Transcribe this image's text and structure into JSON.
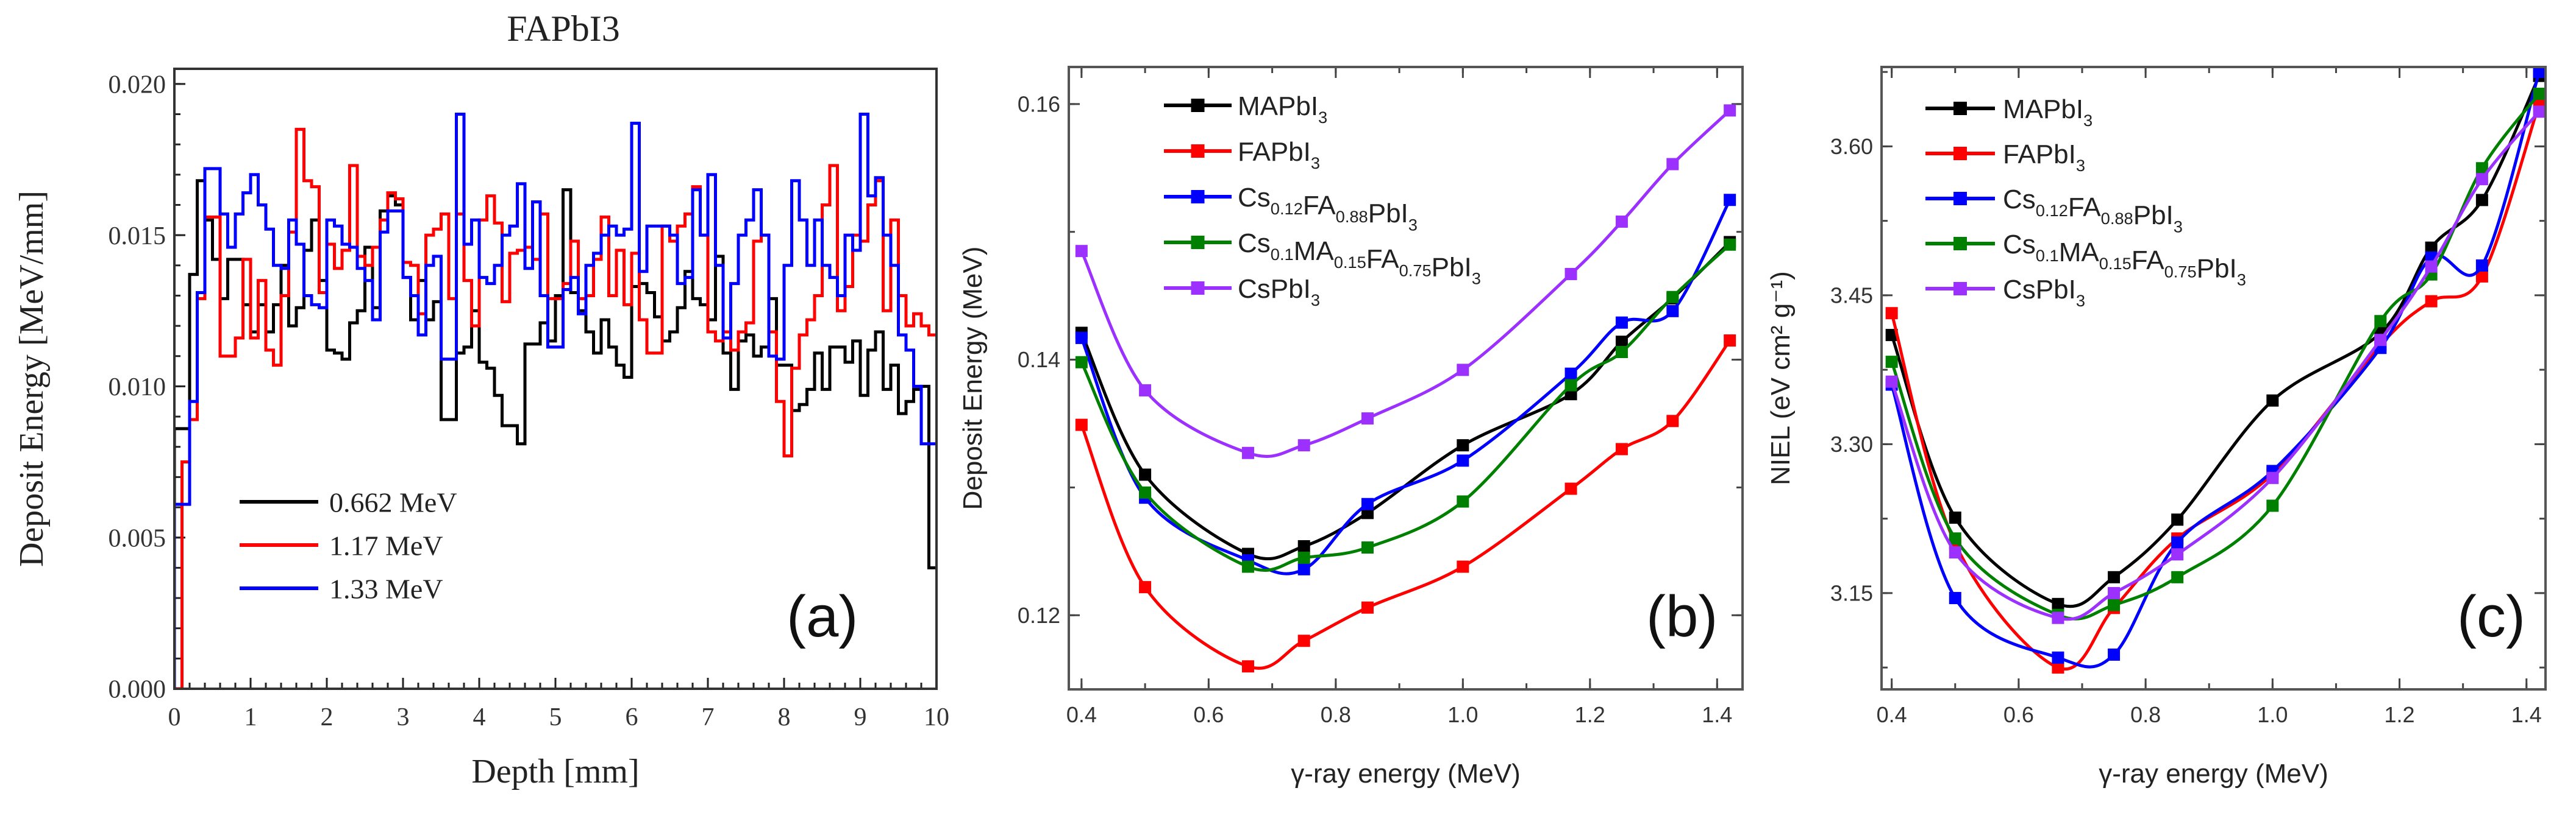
{
  "chart_data": [
    {
      "type": "line",
      "style": "step",
      "panel_label": "(a)",
      "title": "FAPbI3",
      "xlabel": "Depth [mm]",
      "ylabel": "Deposit Energy [MeV/mm]",
      "xlim": [
        0,
        10
      ],
      "ylim": [
        0,
        0.0205
      ],
      "xticks": [
        "0",
        "1",
        "2",
        "3",
        "4",
        "5",
        "6",
        "7",
        "8",
        "9",
        "10"
      ],
      "yticks": [
        "0.000",
        "0.005",
        "0.010",
        "0.015",
        "0.020"
      ],
      "bin_width": 0.1,
      "legend_position": "bottom-left",
      "series": [
        {
          "name": "0.662 MeV",
          "color": "#000000",
          "values": [
            0.0086,
            0.0086,
            0.0137,
            0.0168,
            0.0155,
            0.0142,
            0.0129,
            0.0142,
            0.0142,
            0.0127,
            0.0118,
            0.0127,
            0.0118,
            0.0127,
            0.014,
            0.012,
            0.0126,
            0.0145,
            0.0155,
            0.0135,
            0.0112,
            0.0111,
            0.0109,
            0.0121,
            0.0125,
            0.0146,
            0.0126,
            0.0158,
            0.0163,
            0.016,
            0.0136,
            0.0122,
            0.0135,
            0.0122,
            0.0128,
            0.0089,
            0.0089,
            0.0111,
            0.0113,
            0.0125,
            0.0108,
            0.0106,
            0.0097,
            0.0087,
            0.0087,
            0.0081,
            0.0114,
            0.0114,
            0.0121,
            0.0115,
            0.013,
            0.0165,
            0.0131,
            0.0125,
            0.0118,
            0.0111,
            0.0122,
            0.0113,
            0.0107,
            0.0103,
            0.0133,
            0.0134,
            0.0131,
            0.0123,
            0.0115,
            0.0118,
            0.0126,
            0.0138,
            0.0129,
            0.0127,
            0.0122,
            0.0143,
            0.0111,
            0.0099,
            0.0115,
            0.0117,
            0.011,
            0.0113,
            0.0129,
            0.0107,
            0.0107,
            0.0092,
            0.0094,
            0.0099,
            0.0111,
            0.0099,
            0.0113,
            0.0113,
            0.0108,
            0.0115,
            0.0097,
            0.0112,
            0.0118,
            0.0099,
            0.0107,
            0.0091,
            0.0095,
            0.0099,
            0.01,
            0.004
          ]
        },
        {
          "name": "1.17 MeV",
          "color": "#ff0000",
          "values": [
            0.0,
            0.0075,
            0.0089,
            0.0129,
            0.0156,
            0.0156,
            0.011,
            0.011,
            0.0116,
            0.0142,
            0.0116,
            0.0135,
            0.0112,
            0.0107,
            0.013,
            0.0151,
            0.0185,
            0.0168,
            0.0166,
            0.0131,
            0.0147,
            0.0139,
            0.0145,
            0.0173,
            0.0143,
            0.014,
            0.0146,
            0.0155,
            0.0164,
            0.0162,
            0.0141,
            0.014,
            0.0124,
            0.015,
            0.0152,
            0.0157,
            0.0129,
            0.0157,
            0.0135,
            0.012,
            0.0155,
            0.0163,
            0.0154,
            0.0128,
            0.0144,
            0.0145,
            0.0146,
            0.0142,
            0.0157,
            0.0129,
            0.0129,
            0.0134,
            0.0148,
            0.0129,
            0.013,
            0.0142,
            0.0156,
            0.013,
            0.0145,
            0.0127,
            0.0144,
            0.0122,
            0.0111,
            0.0111,
            0.0153,
            0.0148,
            0.0153,
            0.0157,
            0.0166,
            0.015,
            0.0118,
            0.0115,
            0.0118,
            0.0112,
            0.0118,
            0.0121,
            0.0148,
            0.015,
            0.0118,
            0.0095,
            0.0077,
            0.0106,
            0.0117,
            0.0122,
            0.013,
            0.016,
            0.0173,
            0.0125,
            0.0133,
            0.015,
            0.0148,
            0.016,
            0.0168,
            0.0125,
            0.0155,
            0.013,
            0.012,
            0.0124,
            0.012,
            0.0117
          ]
        },
        {
          "name": "1.33 MeV",
          "color": "#0000ff",
          "values": [
            0.0061,
            0.0061,
            0.0095,
            0.0131,
            0.0172,
            0.0172,
            0.0157,
            0.0146,
            0.0157,
            0.0164,
            0.017,
            0.016,
            0.0152,
            0.014,
            0.0139,
            0.0155,
            0.0147,
            0.013,
            0.0127,
            0.0126,
            0.0155,
            0.0153,
            0.0147,
            0.0146,
            0.0139,
            0.0135,
            0.0122,
            0.0151,
            0.0158,
            0.0158,
            0.0136,
            0.013,
            0.0117,
            0.014,
            0.0143,
            0.0109,
            0.0109,
            0.019,
            0.0147,
            0.0155,
            0.0136,
            0.0134,
            0.014,
            0.015,
            0.0153,
            0.0167,
            0.0139,
            0.0161,
            0.013,
            0.0113,
            0.0113,
            0.0132,
            0.0136,
            0.0124,
            0.014,
            0.0144,
            0.015,
            0.0153,
            0.015,
            0.0152,
            0.0187,
            0.0138,
            0.0153,
            0.0153,
            0.0153,
            0.015,
            0.0134,
            0.0136,
            0.0165,
            0.015,
            0.017,
            0.014,
            0.0116,
            0.0134,
            0.015,
            0.0155,
            0.0165,
            0.015,
            0.011,
            0.0109,
            0.014,
            0.0168,
            0.0155,
            0.014,
            0.0155,
            0.014,
            0.0136,
            0.013,
            0.015,
            0.0145,
            0.019,
            0.0163,
            0.0169,
            0.015,
            0.014,
            0.0117,
            0.0112,
            0.01,
            0.0081,
            0.0081
          ]
        }
      ]
    },
    {
      "type": "line",
      "panel_label": "(b)",
      "xlabel": "γ-ray energy (MeV)",
      "ylabel": "Deposit Energy (MeV)",
      "xlim": [
        0.38,
        1.44
      ],
      "ylim": [
        0.1142,
        0.1629
      ],
      "xticks": [
        "0.4",
        "0.6",
        "0.8",
        "1.0",
        "1.2",
        "1.4"
      ],
      "yticks": [
        "0.12",
        "0.14",
        "0.16"
      ],
      "legend_position": "top-left",
      "x": [
        0.4,
        0.5,
        0.662,
        0.75,
        0.85,
        1.0,
        1.17,
        1.25,
        1.33,
        1.42
      ],
      "series": [
        {
          "name": "MAPbI3",
          "color": "#000000",
          "values": [
            0.1421,
            0.131,
            0.1248,
            0.1254,
            0.128,
            0.1333,
            0.1373,
            0.1414,
            0.1448,
            0.1492
          ]
        },
        {
          "name": "FAPbI3",
          "color": "#ff0000",
          "values": [
            0.1349,
            0.1222,
            0.116,
            0.118,
            0.1206,
            0.1238,
            0.1299,
            0.133,
            0.1352,
            0.1415
          ]
        },
        {
          "name": "Cs0.12FA0.88PbI3",
          "color": "#0000ff",
          "values": [
            0.1417,
            0.1292,
            0.1243,
            0.1236,
            0.1287,
            0.1321,
            0.1389,
            0.1429,
            0.1438,
            0.1525
          ]
        },
        {
          "name": "Cs0.1MA0.15FA0.75PbI3",
          "color": "#008000",
          "values": [
            0.1398,
            0.1296,
            0.1238,
            0.1245,
            0.1253,
            0.1289,
            0.138,
            0.1406,
            0.1449,
            0.149
          ]
        },
        {
          "name": "CsPbI3",
          "color": "#9b30ff",
          "values": [
            0.1485,
            0.1376,
            0.1327,
            0.1333,
            0.1354,
            0.1392,
            0.1467,
            0.1508,
            0.1553,
            0.1595
          ]
        }
      ]
    },
    {
      "type": "line",
      "panel_label": "(c)",
      "xlabel": "γ-ray energy (MeV)",
      "ylabel": "NIEL (eV cm² g⁻¹)",
      "xlim": [
        0.384,
        1.43
      ],
      "ylim": [
        3.053,
        3.68
      ],
      "xticks": [
        "0.4",
        "0.6",
        "0.8",
        "1.0",
        "1.2",
        "1.4"
      ],
      "yticks": [
        "3.15",
        "3.30",
        "3.45",
        "3.60"
      ],
      "legend_position": "top-left",
      "x": [
        0.4,
        0.5,
        0.662,
        0.75,
        0.85,
        1.0,
        1.17,
        1.25,
        1.33,
        1.42
      ],
      "series": [
        {
          "name": "MAPbI3",
          "color": "#000000",
          "values": [
            3.41,
            3.226,
            3.139,
            3.166,
            3.224,
            3.344,
            3.412,
            3.498,
            3.546,
            3.671
          ]
        },
        {
          "name": "FAPbI3",
          "color": "#ff0000",
          "values": [
            3.432,
            3.2,
            3.075,
            3.135,
            3.205,
            3.27,
            3.4,
            3.444,
            3.469,
            3.643
          ]
        },
        {
          "name": "Cs0.12FA0.88PbI3",
          "color": "#0000ff",
          "values": [
            3.36,
            3.145,
            3.085,
            3.088,
            3.201,
            3.273,
            3.397,
            3.488,
            3.48,
            3.675
          ]
        },
        {
          "name": "Cs0.1MA0.15FA0.75PbI3",
          "color": "#008000",
          "values": [
            3.383,
            3.205,
            3.128,
            3.138,
            3.166,
            3.238,
            3.424,
            3.471,
            3.578,
            3.653
          ]
        },
        {
          "name": "CsPbI3",
          "color": "#9b30ff",
          "values": [
            3.363,
            3.191,
            3.125,
            3.15,
            3.189,
            3.266,
            3.405,
            3.479,
            3.567,
            3.635
          ]
        }
      ]
    }
  ]
}
